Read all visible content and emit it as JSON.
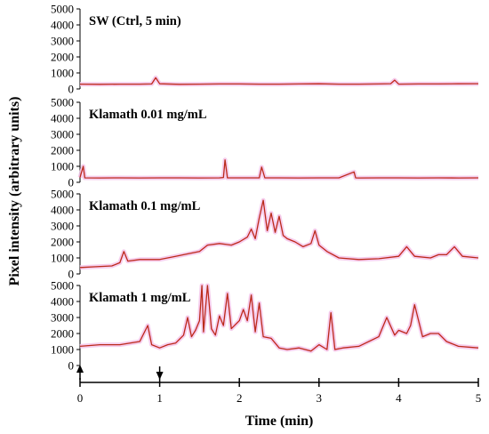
{
  "chart_data": {
    "type": "line",
    "ylabel": "Pixel intensity (arbitrary units)",
    "xlabel": "Time (min)",
    "xlim": [
      0,
      5
    ],
    "x_ticks": [
      "0",
      "1",
      "2",
      "3",
      "4",
      "5"
    ],
    "ylim": [
      0,
      5000
    ],
    "y_ticks": [
      "0",
      "1000",
      "2000",
      "3000",
      "4000",
      "5000"
    ],
    "grid": false,
    "colors": {
      "trace": "#d42020",
      "trace_dark": "#7a4a10",
      "halo": "#f3c6ea"
    },
    "markers": [
      {
        "x": 0,
        "direction": "up"
      },
      {
        "x": 1,
        "direction": "down"
      }
    ],
    "panels": [
      {
        "label": "SW (Ctrl, 5 min)",
        "x": [
          0,
          0.25,
          0.5,
          0.75,
          0.9,
          0.95,
          1.0,
          1.25,
          1.5,
          1.75,
          2.0,
          2.25,
          2.5,
          2.75,
          3.0,
          3.25,
          3.5,
          3.75,
          3.9,
          3.95,
          4.0,
          4.25,
          4.5,
          4.75,
          5.0
        ],
        "values": [
          300,
          290,
          300,
          300,
          310,
          700,
          320,
          290,
          300,
          310,
          310,
          300,
          300,
          310,
          320,
          300,
          300,
          310,
          330,
          550,
          300,
          310,
          310,
          320,
          330
        ]
      },
      {
        "label": "Klamath 0.01 mg/mL",
        "x": [
          0,
          0.04,
          0.06,
          0.25,
          0.5,
          0.75,
          1.0,
          1.25,
          1.5,
          1.75,
          1.8,
          1.82,
          1.85,
          2.0,
          2.25,
          2.28,
          2.32,
          2.5,
          2.75,
          3.0,
          3.25,
          3.44,
          3.46,
          3.5,
          3.75,
          4.0,
          4.25,
          4.5,
          4.75,
          5.0
        ],
        "values": [
          300,
          1000,
          280,
          270,
          280,
          270,
          280,
          280,
          270,
          280,
          300,
          1400,
          280,
          280,
          280,
          950,
          280,
          280,
          270,
          280,
          280,
          650,
          280,
          270,
          280,
          280,
          270,
          280,
          270,
          280
        ]
      },
      {
        "label": "Klamath 0.1 mg/mL",
        "x": [
          0,
          0.2,
          0.4,
          0.5,
          0.55,
          0.6,
          0.75,
          1.0,
          1.2,
          1.3,
          1.5,
          1.6,
          1.75,
          1.9,
          2.0,
          2.1,
          2.15,
          2.2,
          2.25,
          2.3,
          2.35,
          2.4,
          2.45,
          2.5,
          2.55,
          2.6,
          2.7,
          2.8,
          2.9,
          2.95,
          3.0,
          3.1,
          3.25,
          3.5,
          3.75,
          4.0,
          4.1,
          4.2,
          4.4,
          4.5,
          4.6,
          4.7,
          4.8,
          5.0
        ],
        "values": [
          400,
          450,
          500,
          700,
          1400,
          800,
          900,
          900,
          1100,
          1200,
          1400,
          1800,
          1900,
          1800,
          2000,
          2300,
          2800,
          2200,
          3500,
          4600,
          2700,
          3800,
          2600,
          3600,
          2400,
          2200,
          2000,
          1700,
          1900,
          2700,
          1800,
          1400,
          1000,
          900,
          950,
          1100,
          1700,
          1100,
          1000,
          1200,
          1200,
          1700,
          1100,
          1000
        ]
      },
      {
        "label": "Klamath 1 mg/mL",
        "x": [
          0,
          0.25,
          0.5,
          0.75,
          0.85,
          0.9,
          1.0,
          1.1,
          1.2,
          1.3,
          1.35,
          1.4,
          1.45,
          1.5,
          1.53,
          1.55,
          1.6,
          1.65,
          1.7,
          1.75,
          1.8,
          1.85,
          1.9,
          2.0,
          2.05,
          2.1,
          2.15,
          2.2,
          2.25,
          2.3,
          2.4,
          2.5,
          2.6,
          2.75,
          2.9,
          3.0,
          3.1,
          3.15,
          3.2,
          3.3,
          3.5,
          3.75,
          3.85,
          3.95,
          4.0,
          4.1,
          4.15,
          4.2,
          4.3,
          4.4,
          4.5,
          4.6,
          4.75,
          5.0
        ],
        "values": [
          1200,
          1300,
          1300,
          1500,
          2500,
          1300,
          1100,
          1300,
          1400,
          1900,
          3000,
          1800,
          2200,
          2800,
          5000,
          2100,
          5000,
          2300,
          1900,
          3100,
          2500,
          4500,
          2300,
          2800,
          3500,
          2800,
          4400,
          2100,
          3900,
          1800,
          1700,
          1100,
          1000,
          1100,
          900,
          1300,
          1000,
          3300,
          1000,
          1100,
          1200,
          1800,
          3000,
          1900,
          2200,
          2000,
          2500,
          3800,
          1800,
          2000,
          2000,
          1500,
          1200,
          1100
        ]
      }
    ]
  }
}
